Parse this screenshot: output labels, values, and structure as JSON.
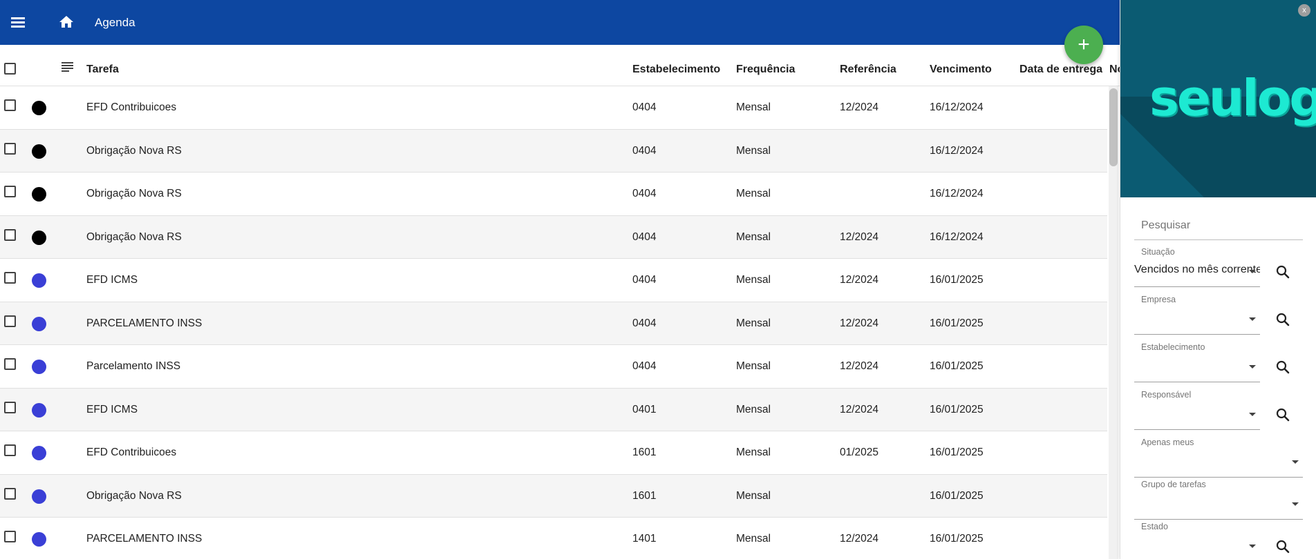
{
  "topbar": {
    "title": "Agenda",
    "background_color": "#0d47a1"
  },
  "fab": {
    "label": "+",
    "color": "#4caf50"
  },
  "table": {
    "columns": [
      "Tarefa",
      "Estabelecimento",
      "Frequência",
      "Referência",
      "Vencimento",
      "Data de entrega",
      "No"
    ],
    "rows": [
      {
        "status_color": "#000000",
        "tarefa": "EFD Contribuicoes",
        "estabelecimento": "0404",
        "frequencia": "Mensal",
        "referencia": "12/2024",
        "vencimento": "16/12/2024",
        "entrega": ""
      },
      {
        "status_color": "#000000",
        "tarefa": "Obrigação Nova RS",
        "estabelecimento": "0404",
        "frequencia": "Mensal",
        "referencia": "",
        "vencimento": "16/12/2024",
        "entrega": ""
      },
      {
        "status_color": "#000000",
        "tarefa": "Obrigação Nova RS",
        "estabelecimento": "0404",
        "frequencia": "Mensal",
        "referencia": "",
        "vencimento": "16/12/2024",
        "entrega": ""
      },
      {
        "status_color": "#000000",
        "tarefa": "Obrigação Nova RS",
        "estabelecimento": "0404",
        "frequencia": "Mensal",
        "referencia": "12/2024",
        "vencimento": "16/12/2024",
        "entrega": ""
      },
      {
        "status_color": "#3a3fd6",
        "tarefa": "EFD ICMS",
        "estabelecimento": "0404",
        "frequencia": "Mensal",
        "referencia": "12/2024",
        "vencimento": "16/01/2025",
        "entrega": ""
      },
      {
        "status_color": "#3a3fd6",
        "tarefa": "PARCELAMENTO INSS",
        "estabelecimento": "0404",
        "frequencia": "Mensal",
        "referencia": "12/2024",
        "vencimento": "16/01/2025",
        "entrega": ""
      },
      {
        "status_color": "#3a3fd6",
        "tarefa": "Parcelamento INSS",
        "estabelecimento": "0404",
        "frequencia": "Mensal",
        "referencia": "12/2024",
        "vencimento": "16/01/2025",
        "entrega": ""
      },
      {
        "status_color": "#3a3fd6",
        "tarefa": "EFD ICMS",
        "estabelecimento": "0401",
        "frequencia": "Mensal",
        "referencia": "12/2024",
        "vencimento": "16/01/2025",
        "entrega": ""
      },
      {
        "status_color": "#3a3fd6",
        "tarefa": "EFD Contribuicoes",
        "estabelecimento": "1601",
        "frequencia": "Mensal",
        "referencia": "01/2025",
        "vencimento": "16/01/2025",
        "entrega": ""
      },
      {
        "status_color": "#3a3fd6",
        "tarefa": "Obrigação Nova RS",
        "estabelecimento": "1601",
        "frequencia": "Mensal",
        "referencia": "",
        "vencimento": "16/01/2025",
        "entrega": ""
      },
      {
        "status_color": "#3a3fd6",
        "tarefa": "PARCELAMENTO INSS",
        "estabelecimento": "1401",
        "frequencia": "Mensal",
        "referencia": "12/2024",
        "vencimento": "16/01/2025",
        "entrega": ""
      }
    ]
  },
  "sidebar": {
    "logo_text": "seulogo",
    "close_label": "x",
    "search_placeholder": "Pesquisar",
    "filters": [
      {
        "label": "Situação",
        "value": "Vencidos no mês corrente",
        "has_search": true
      },
      {
        "label": "Empresa",
        "value": "",
        "has_search": true
      },
      {
        "label": "Estabelecimento",
        "value": "",
        "has_search": true
      },
      {
        "label": "Responsável",
        "value": "",
        "has_search": true
      },
      {
        "label": "Apenas meus",
        "value": "",
        "has_search": false
      },
      {
        "label": "Grupo de tarefas",
        "value": "",
        "has_search": false
      },
      {
        "label": "Estado",
        "value": "",
        "has_search": true
      }
    ]
  }
}
